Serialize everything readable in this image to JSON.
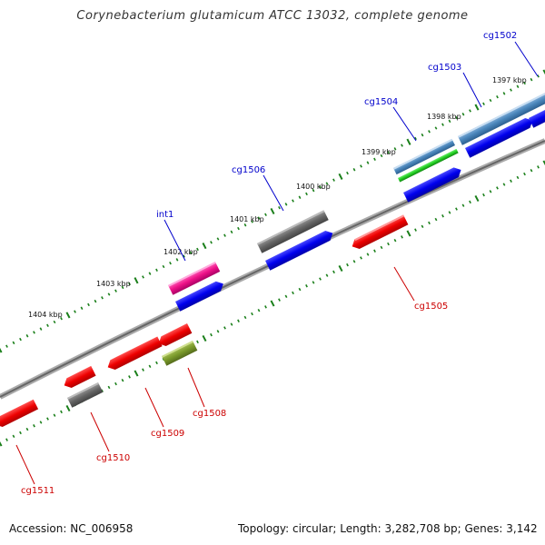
{
  "title": "Corynebacterium glutamicum ATCC 13032, complete genome",
  "accession": "Accession: NC_006958",
  "topology": "Topology: circular; Length: 3,282,708 bp; Genes: 3,142",
  "scale_labels": [
    "1397 kbp",
    "1398 kbp",
    "1399 kbp",
    "1400 kbp",
    "1401 kbp",
    "1402 kbp",
    "1403 kbp",
    "1404 kbp"
  ],
  "gene_labels": {
    "upper": [
      "cg1502",
      "cg1503",
      "cg1504",
      "cg1506",
      "int1"
    ],
    "lower": [
      "cg1505",
      "cg1508",
      "cg1509",
      "cg1510",
      "cg1511"
    ]
  },
  "colors": {
    "forward_label": "#0000cc",
    "reverse_label": "#cc0000",
    "scale_tick": "#1a7f1a",
    "backbone": "#888888"
  }
}
